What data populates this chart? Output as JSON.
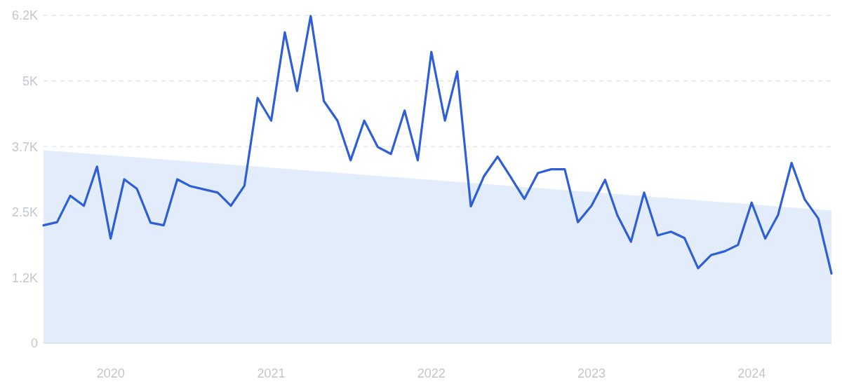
{
  "chart_data": {
    "type": "line",
    "x": [
      "2019-08",
      "2019-09",
      "2019-10",
      "2019-11",
      "2019-12",
      "2020-01",
      "2020-02",
      "2020-03",
      "2020-04",
      "2020-05",
      "2020-06",
      "2020-07",
      "2020-08",
      "2020-09",
      "2020-10",
      "2020-11",
      "2020-12",
      "2021-01",
      "2021-02",
      "2021-03",
      "2021-04",
      "2021-05",
      "2021-06",
      "2021-07",
      "2021-08",
      "2021-09",
      "2021-10",
      "2021-11",
      "2021-12",
      "2022-01",
      "2022-02",
      "2022-03",
      "2022-04",
      "2022-05",
      "2022-06",
      "2022-07",
      "2022-08",
      "2022-09",
      "2022-10",
      "2022-11",
      "2022-12",
      "2023-01",
      "2023-02",
      "2023-03",
      "2023-04",
      "2023-05",
      "2023-06",
      "2023-07",
      "2023-08",
      "2023-09",
      "2023-10",
      "2023-11",
      "2023-12",
      "2024-01",
      "2024-02",
      "2024-03",
      "2024-04",
      "2024-05",
      "2024-06",
      "2024-07"
    ],
    "series": [
      {
        "type": "area",
        "color": "#e2ecfb",
        "x": [
          "2019-08",
          "2024-07"
        ],
        "values": [
          3650,
          2510
        ]
      },
      {
        "color": "#2f5fd6",
        "values": [
          2230,
          2290,
          2790,
          2600,
          3340,
          1980,
          3100,
          2920,
          2280,
          2230,
          3100,
          2970,
          2910,
          2850,
          2600,
          2980,
          4640,
          4210,
          5880,
          4770,
          6190,
          4580,
          4210,
          3460,
          4210,
          3710,
          3580,
          4400,
          3460,
          5510,
          4210,
          5140,
          2590,
          3160,
          3530,
          3140,
          2730,
          3220,
          3290,
          3290,
          2290,
          2600,
          3090,
          2420,
          1920,
          2850,
          2040,
          2110,
          1990,
          1420,
          1670,
          1740,
          1860,
          2660,
          1980,
          2420,
          3410,
          2720,
          2360,
          1320
        ]
      }
    ],
    "xlim": [
      "2019-08",
      "2024-07"
    ],
    "xticks": [
      {
        "value": "2020-01",
        "label": "2020"
      },
      {
        "value": "2021-01",
        "label": "2021"
      },
      {
        "value": "2022-01",
        "label": "2022"
      },
      {
        "value": "2023-01",
        "label": "2023"
      },
      {
        "value": "2024-01",
        "label": "2024"
      }
    ],
    "ylim": [
      0,
      6200
    ],
    "yticks": [
      0,
      {
        "value": 1240,
        "label": "1.2K"
      },
      {
        "value": 2480,
        "label": "2.5K"
      },
      {
        "value": 3720,
        "label": "3.7K"
      },
      {
        "value": 4960,
        "label": "5K"
      },
      {
        "value": 6200,
        "label": "6.2K"
      }
    ],
    "grid": "y"
  }
}
